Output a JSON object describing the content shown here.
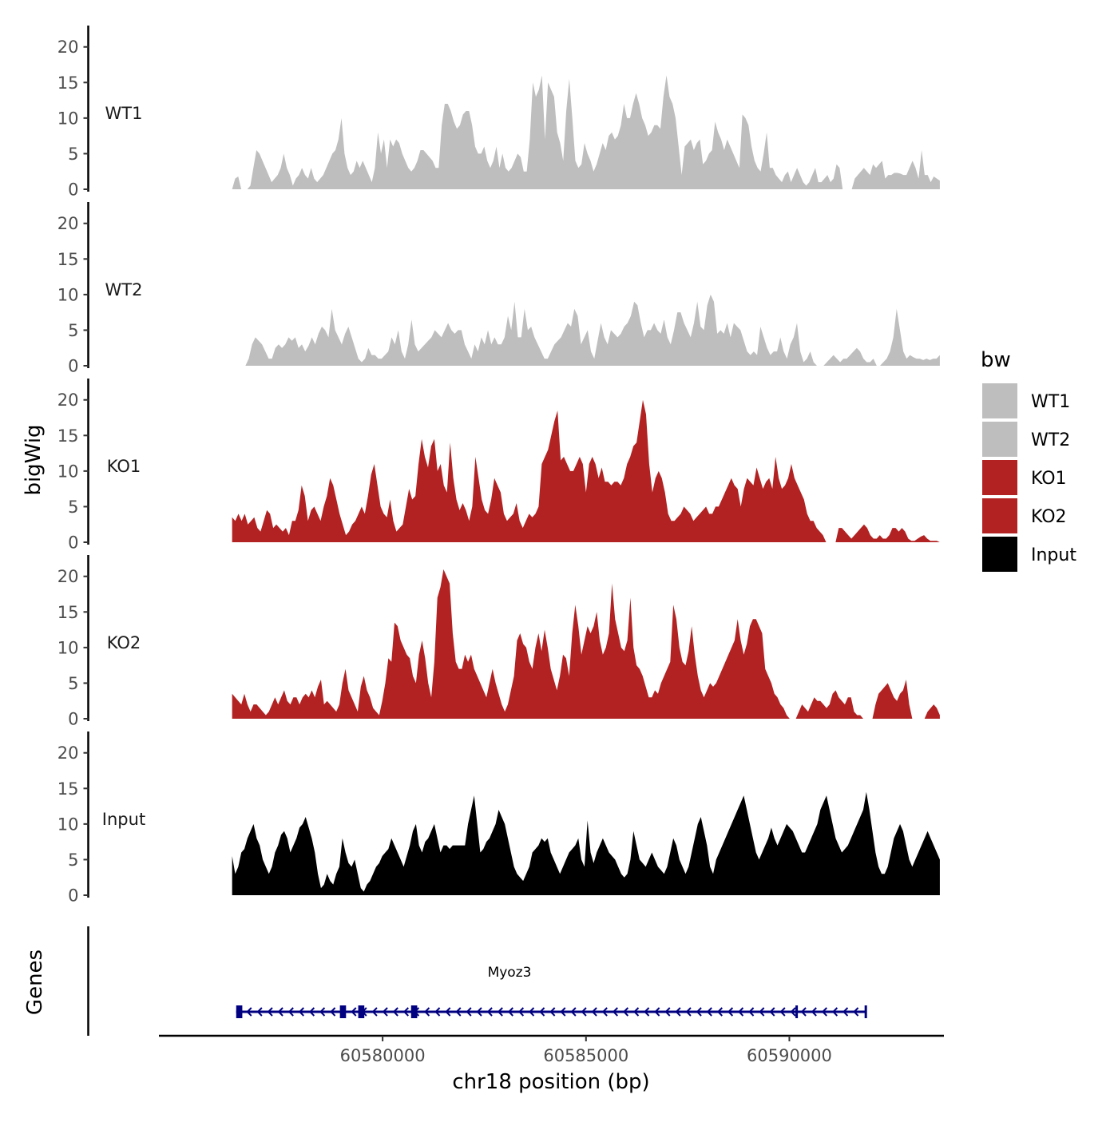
{
  "chart_data": {
    "type": "area",
    "region": {
      "chrom": "chr18",
      "start": 60576300,
      "end": 60593700
    },
    "x_range": [
      60574500,
      60593800
    ],
    "y_range": [
      0,
      23
    ],
    "y_ticks": [
      0,
      5,
      10,
      15,
      20
    ],
    "x_ticks": [
      60580000,
      60585000,
      60590000
    ],
    "x_tick_labels": [
      "60580000",
      "60585000",
      "60590000"
    ],
    "xlabel": "chr18 position (bp)",
    "ylabel": "bigWig",
    "genes_label": "Genes",
    "legend": {
      "title": "bw",
      "entries": [
        {
          "label": "WT1",
          "color": "#bebebe"
        },
        {
          "label": "WT2",
          "color": "#bebebe"
        },
        {
          "label": "KO1",
          "color": "#b22222"
        },
        {
          "label": "KO2",
          "color": "#b22222"
        },
        {
          "label": "Input",
          "color": "#000000"
        }
      ]
    },
    "series": [
      {
        "name": "WT1",
        "color": "#bebebe",
        "values": [
          0,
          1.5,
          1.8,
          0,
          0,
          0,
          0.5,
          3,
          5.5,
          5,
          4,
          3,
          2,
          1,
          1.5,
          2,
          3,
          5,
          3,
          2,
          0.5,
          1.5,
          2,
          3,
          2,
          1.5,
          3,
          1.5,
          1,
          1.5,
          2,
          3,
          4,
          5,
          5.5,
          7,
          10,
          5,
          3,
          2,
          2.5,
          4,
          3,
          4,
          3,
          2,
          1,
          3,
          8,
          5,
          7,
          3,
          7,
          6,
          7,
          6.5,
          5,
          4,
          3,
          2.5,
          3,
          4,
          5.5,
          5.5,
          5,
          4.5,
          4,
          3,
          3,
          9,
          12,
          12,
          11,
          9.5,
          8.5,
          9,
          10.5,
          11,
          11,
          9,
          6,
          5,
          5,
          6,
          4,
          3,
          4,
          6,
          3,
          5,
          3,
          2.5,
          3,
          4,
          5,
          4.5,
          2.5,
          2.5,
          7,
          15,
          13,
          14,
          16,
          7,
          15,
          14,
          13,
          8,
          6.5,
          4,
          11,
          15.5,
          10,
          4,
          3,
          3.5,
          6.5,
          5,
          4,
          2.5,
          3.5,
          5,
          6.5,
          5.5,
          7.5,
          8,
          7,
          7.5,
          9,
          12,
          10,
          10,
          12,
          13.5,
          12,
          10,
          9,
          7.5,
          8,
          9,
          9,
          8.5,
          13,
          16,
          13,
          12,
          10,
          6,
          2,
          6,
          6.5,
          7,
          5.5,
          6.5,
          7,
          3.5,
          4,
          5,
          5.5,
          9.5,
          8,
          7,
          5.5,
          7,
          6,
          5,
          4,
          3,
          10.5,
          10,
          9,
          6,
          4,
          3,
          2.5,
          5,
          8,
          3,
          3,
          2,
          1.5,
          1,
          2,
          2.5,
          1,
          2,
          3,
          2,
          1,
          0.5,
          1,
          2,
          3,
          1,
          1,
          1.5,
          2,
          1,
          1.5,
          3.5,
          3,
          0,
          0,
          0,
          0,
          1.5,
          2,
          2.5,
          3,
          2.5,
          2,
          3.5,
          3,
          3.5,
          4,
          1.5,
          2,
          2,
          2.3,
          2.3,
          2.2,
          2,
          2,
          3,
          4,
          3,
          1.5,
          5.5,
          2,
          2,
          1,
          1.8,
          1.5,
          1.2
        ]
      },
      {
        "name": "WT2",
        "color": "#bebebe",
        "values": [
          0,
          0,
          0,
          0,
          0,
          1,
          3,
          4,
          3.5,
          3,
          2,
          1,
          1,
          2.5,
          3,
          2.5,
          3,
          4,
          3.5,
          4,
          2.5,
          3,
          2,
          2.8,
          4,
          3,
          4.5,
          5.5,
          5,
          4,
          8,
          5,
          4,
          3,
          4.5,
          5.5,
          4,
          2.5,
          1,
          0.5,
          1,
          2.5,
          1.5,
          1.5,
          1,
          1,
          1.5,
          2,
          4,
          3,
          5,
          2,
          1,
          3,
          6.5,
          3,
          2,
          2.5,
          3,
          3.5,
          4,
          5,
          4.5,
          4,
          5,
          6,
          5,
          4.5,
          5,
          5,
          3,
          2,
          1,
          3,
          2,
          4,
          3,
          5,
          3,
          4,
          3,
          3,
          4,
          7,
          5,
          9,
          4,
          4,
          8,
          5,
          5.5,
          4,
          3,
          2,
          1,
          1,
          2,
          3,
          3.5,
          4,
          5,
          6,
          5.5,
          8,
          7,
          3,
          4,
          5,
          2,
          1,
          3.5,
          6,
          4,
          3,
          5,
          4.5,
          4,
          4.5,
          5.5,
          6,
          7,
          9,
          8.5,
          6,
          4,
          5,
          5,
          6,
          5,
          4.5,
          6.5,
          4,
          3,
          5,
          7.5,
          7.5,
          6,
          5,
          4,
          6,
          9,
          5.5,
          5,
          8.5,
          10,
          9,
          4.5,
          5,
          4.5,
          6,
          4,
          6,
          5.5,
          5,
          3.5,
          2,
          1.5,
          2,
          1.5,
          5.5,
          4,
          2.5,
          1.5,
          2,
          2,
          4,
          2,
          1,
          3,
          4,
          6,
          2,
          0.5,
          1,
          2,
          0.5,
          0,
          0,
          0,
          0.5,
          1,
          1.5,
          1,
          0.5,
          1,
          1,
          1.5,
          2,
          2.5,
          2,
          1,
          0.5,
          0.5,
          1,
          0,
          0,
          0.5,
          1,
          2,
          4,
          8,
          5,
          2,
          1,
          1.5,
          1.2,
          1,
          1,
          0.8,
          1,
          0.8,
          1,
          1,
          1.5
        ]
      },
      {
        "name": "KO1",
        "color": "#b22222",
        "values": [
          3.5,
          3,
          4,
          3,
          4,
          2.5,
          3,
          3.5,
          2,
          1.5,
          3,
          4.5,
          4,
          2,
          2.5,
          2,
          1.5,
          2,
          1,
          3,
          3,
          4.5,
          8,
          6.5,
          3,
          4.5,
          5,
          4,
          3,
          5,
          6.5,
          9,
          8,
          6,
          4,
          2.5,
          1,
          1.5,
          2.5,
          3,
          4,
          5,
          4,
          6.5,
          9.5,
          11,
          8,
          5,
          4,
          3.5,
          6,
          3,
          1.5,
          2,
          2.5,
          5,
          7.5,
          6,
          6.5,
          11,
          14.5,
          12,
          10.5,
          13.5,
          14.5,
          10,
          11,
          8,
          7,
          14,
          9,
          6,
          4.5,
          5.5,
          4.5,
          3,
          5,
          12,
          9,
          6,
          4.5,
          4,
          6,
          9,
          8,
          7,
          4,
          3,
          3.5,
          4,
          5.5,
          3,
          2,
          3,
          4,
          3.5,
          4,
          5,
          11,
          12,
          13,
          15,
          17,
          18.5,
          11.5,
          12,
          11,
          10,
          10,
          11,
          12,
          11,
          7,
          11,
          12,
          11,
          9,
          10.5,
          8.5,
          8.5,
          8,
          8.5,
          8.5,
          8,
          9,
          11,
          12,
          13.5,
          14,
          17,
          20,
          18,
          11,
          7,
          9,
          10,
          9,
          7,
          4,
          3,
          3,
          3.5,
          4,
          5,
          4.5,
          4,
          3,
          3.5,
          4,
          4.5,
          5,
          4,
          4,
          5,
          5,
          6,
          7,
          8,
          9,
          8,
          7.5,
          5,
          7.5,
          9,
          8.5,
          8,
          10.5,
          9,
          7.5,
          8.5,
          9,
          7.5,
          12,
          9,
          7.5,
          8,
          9,
          11,
          9,
          8,
          7,
          6,
          4,
          3,
          3,
          2,
          1.5,
          1,
          0,
          0,
          0,
          0,
          2,
          2,
          1.5,
          1,
          0.5,
          1,
          1.5,
          2,
          2.5,
          2,
          1,
          0.5,
          0.5,
          1,
          0.5,
          0.5,
          1,
          2,
          2,
          1.5,
          2,
          1.5,
          0.5,
          0.2,
          0.2,
          0.5,
          0.8,
          1,
          0.5,
          0.2,
          0.2,
          0.2,
          0
        ]
      },
      {
        "name": "KO2",
        "color": "#b22222",
        "values": [
          3.5,
          3,
          2.5,
          2,
          3.5,
          2,
          1,
          2,
          2,
          1.5,
          1,
          0.5,
          1,
          2,
          3,
          2,
          3,
          4,
          2.5,
          2,
          3,
          3,
          2,
          3,
          3.5,
          3,
          4,
          3,
          4.5,
          5.5,
          2,
          2.5,
          2,
          1.5,
          1,
          2,
          5,
          7,
          4,
          3,
          2,
          1,
          4.5,
          6,
          4,
          3,
          1.5,
          1,
          0.5,
          2.5,
          5,
          8.5,
          8,
          13.5,
          13,
          11,
          10,
          9,
          8.5,
          6,
          5,
          9,
          11,
          8.5,
          5,
          3,
          8,
          17,
          18.5,
          21,
          20,
          19,
          12,
          8,
          7,
          7,
          9,
          8,
          9,
          7,
          6,
          5,
          4,
          3,
          5,
          7,
          5,
          3.5,
          2,
          1,
          2,
          4,
          6,
          11,
          12,
          10.5,
          10,
          8,
          7,
          10,
          12,
          9.5,
          12.5,
          10,
          7,
          5.5,
          4,
          6,
          9,
          8.5,
          6,
          12,
          16,
          13,
          9,
          11,
          13,
          12,
          13,
          15,
          11,
          9,
          10,
          12,
          19,
          14,
          12,
          10,
          9.5,
          11,
          17,
          10,
          7.5,
          7,
          6,
          4.5,
          3,
          3,
          4,
          3.5,
          5,
          6,
          7,
          8,
          16,
          14,
          10,
          8,
          7.5,
          9.5,
          13,
          9,
          6,
          4,
          3,
          4,
          5,
          4.5,
          5,
          6,
          7,
          8,
          9,
          10,
          11,
          14,
          11,
          9,
          10.5,
          13,
          14,
          14,
          13,
          12,
          7,
          6,
          5,
          3.5,
          3,
          2,
          1.5,
          0.5,
          0,
          0,
          0,
          1,
          2,
          1.5,
          1,
          2,
          3,
          2.5,
          2.5,
          2,
          1.5,
          2,
          3.5,
          4,
          3,
          2.5,
          2,
          3,
          3,
          1,
          0.5,
          0.5,
          0,
          0,
          0,
          0,
          2,
          3.5,
          4,
          4.5,
          5,
          4,
          3,
          2.5,
          3.5,
          4,
          5.5,
          2,
          0,
          0,
          0,
          0,
          0,
          1,
          1.5,
          2,
          1.5,
          0.5
        ]
      },
      {
        "name": "Input",
        "color": "#000000",
        "values": [
          5.5,
          3,
          4,
          6,
          6.5,
          8,
          9,
          10,
          8,
          7,
          5,
          4,
          3,
          4,
          6,
          7,
          8.5,
          9,
          8,
          6,
          7,
          8,
          9.5,
          10,
          11,
          9.5,
          8,
          6,
          3,
          1,
          1.5,
          3,
          2,
          1.5,
          3,
          4,
          8,
          6,
          4.5,
          4,
          5,
          3,
          1,
          0.5,
          1.5,
          2,
          3,
          4,
          4.5,
          5.5,
          6,
          6.5,
          8,
          7,
          6,
          5,
          4,
          5.5,
          7,
          9,
          10,
          7,
          6,
          7.5,
          8,
          9,
          10,
          8,
          6,
          7,
          7,
          6.5,
          7,
          7,
          7,
          7,
          7,
          10,
          12,
          14,
          10,
          6,
          6.5,
          7.5,
          8,
          9,
          10,
          12,
          11,
          10,
          8,
          6,
          4,
          3,
          2.5,
          2,
          3,
          4,
          6,
          6.5,
          7,
          8,
          7.5,
          8,
          6,
          5,
          4,
          3,
          4,
          5,
          6,
          6.5,
          7,
          8,
          5,
          4,
          10.5,
          6,
          4.5,
          6,
          7,
          8,
          7,
          6,
          5.5,
          5,
          4,
          3,
          2.5,
          3,
          5,
          9,
          7,
          5,
          4.5,
          4,
          5,
          6,
          5,
          4,
          3.5,
          3,
          4,
          6,
          8,
          7,
          5,
          4,
          3,
          4,
          6,
          8,
          10,
          11,
          9,
          7,
          4,
          3,
          5,
          6,
          7,
          8,
          9,
          10,
          11,
          12,
          13,
          14,
          12,
          10,
          8,
          6,
          5,
          6,
          7,
          8,
          9.5,
          8,
          7,
          8,
          9,
          10,
          9.5,
          9,
          8,
          7,
          6,
          6,
          7,
          8,
          9,
          10,
          12,
          13,
          14,
          12,
          10,
          8,
          7,
          6,
          6.5,
          7,
          8,
          9,
          10,
          11,
          12,
          14.5,
          12,
          9,
          6,
          4,
          3,
          3,
          4,
          6,
          8,
          9,
          10,
          9,
          7,
          5,
          4,
          5,
          6,
          7,
          8,
          9,
          8,
          7,
          6,
          5
        ]
      }
    ],
    "gene": {
      "name": "Myoz3",
      "strand": "-",
      "start": 60576400,
      "end": 60591900,
      "exons": [
        [
          60576400,
          60576550
        ],
        [
          60578950,
          60579100
        ],
        [
          60579400,
          60579550
        ],
        [
          60580700,
          60580850
        ],
        [
          60590150,
          60590200
        ],
        [
          60591850,
          60591900
        ]
      ]
    }
  }
}
